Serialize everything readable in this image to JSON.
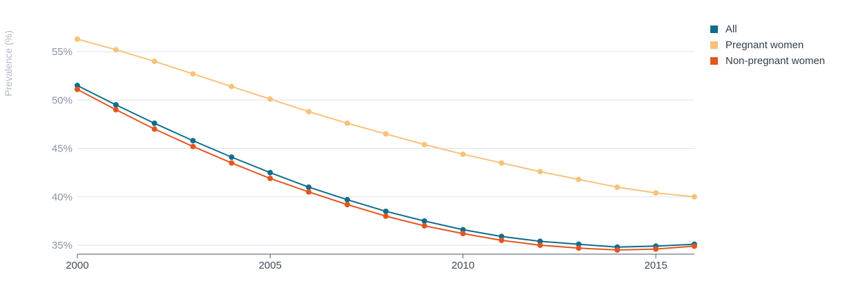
{
  "chart_data": {
    "type": "line",
    "title": "",
    "xlabel": "",
    "ylabel": "Prevalence (%)",
    "x": [
      2000,
      2001,
      2002,
      2003,
      2004,
      2005,
      2006,
      2007,
      2008,
      2009,
      2010,
      2011,
      2012,
      2013,
      2014,
      2015,
      2016
    ],
    "xlim": [
      2000,
      2016
    ],
    "ylim": [
      34,
      58
    ],
    "x_ticks": [
      2000,
      2005,
      2010,
      2015
    ],
    "x_tick_labels": [
      "2000",
      "2005",
      "2010",
      "2015"
    ],
    "y_ticks": [
      35,
      40,
      45,
      50,
      55
    ],
    "y_tick_labels": [
      "35%",
      "40%",
      "45%",
      "50%",
      "55%"
    ],
    "grid": "horizontal",
    "legend_position": "top-right",
    "series": [
      {
        "name": "All",
        "color": "#0f6e8c",
        "values": [
          51.5,
          49.5,
          47.6,
          45.8,
          44.1,
          42.5,
          41.0,
          39.7,
          38.5,
          37.5,
          36.6,
          35.9,
          35.4,
          35.1,
          34.8,
          34.9,
          35.1
        ]
      },
      {
        "name": "Pregnant women",
        "color": "#f9c27a",
        "values": [
          56.3,
          55.2,
          54.0,
          52.7,
          51.4,
          50.1,
          48.8,
          47.6,
          46.5,
          45.4,
          44.4,
          43.5,
          42.6,
          41.8,
          41.0,
          40.4,
          40.0
        ]
      },
      {
        "name": "Non-pregnant women",
        "color": "#e2561f",
        "values": [
          51.1,
          49.0,
          47.0,
          45.2,
          43.5,
          41.9,
          40.5,
          39.2,
          38.0,
          37.0,
          36.2,
          35.5,
          35.0,
          34.7,
          34.5,
          34.6,
          34.9
        ]
      }
    ]
  }
}
